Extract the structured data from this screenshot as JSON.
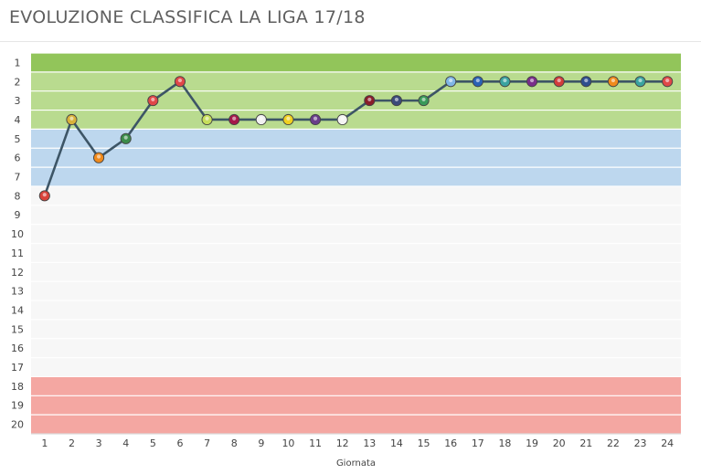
{
  "title": "EVOLUZIONE CLASSIFICA LA LIGA 17/18",
  "chart_data": {
    "type": "line",
    "title": "EVOLUZIONE CLASSIFICA LA LIGA 17/18",
    "xlabel": "Giornata",
    "ylabel": "",
    "x": [
      1,
      2,
      3,
      4,
      5,
      6,
      7,
      8,
      9,
      10,
      11,
      12,
      13,
      14,
      15,
      16,
      17,
      18,
      19,
      20,
      21,
      22,
      23,
      24
    ],
    "y_ticks": [
      1,
      2,
      3,
      4,
      5,
      6,
      7,
      8,
      9,
      10,
      11,
      12,
      13,
      14,
      15,
      16,
      17,
      18,
      19,
      20
    ],
    "ylim": [
      1,
      20
    ],
    "y_inverted": true,
    "grid": true,
    "bands": [
      {
        "from": 1,
        "to": 1,
        "color": "#92c55a"
      },
      {
        "from": 2,
        "to": 4,
        "color": "#b9db8f"
      },
      {
        "from": 5,
        "to": 7,
        "color": "#bdd7ee"
      },
      {
        "from": 8,
        "to": 17,
        "color": "#f7f7f7"
      },
      {
        "from": 18,
        "to": 20,
        "color": "#f4a7a2"
      }
    ],
    "series": [
      {
        "line_color": "#3d5566",
        "values": [
          8,
          4,
          6,
          5,
          3,
          2,
          4,
          4,
          4,
          4,
          4,
          4,
          3,
          3,
          3,
          2,
          2,
          2,
          2,
          2,
          2,
          2,
          2,
          2
        ],
        "opponent_badges": [
          "badge-red",
          "badge-gold",
          "badge-orange",
          "badge-green",
          "badge-redwhite",
          "badge-redwhite",
          "badge-lime",
          "badge-blaugrana",
          "badge-whiteblue",
          "badge-yellow",
          "badge-purple",
          "badge-white",
          "badge-darkred",
          "badge-navy",
          "badge-greenwhite",
          "badge-skyblue",
          "badge-blue",
          "badge-teal",
          "badge-violet",
          "badge-crimson",
          "badge-navygold",
          "badge-orange",
          "badge-teal",
          "badge-redwhite"
        ],
        "badge_colors": [
          "#d9423a",
          "#d9b23a",
          "#f08a1c",
          "#3c8c4a",
          "#e04848",
          "#e04848",
          "#c6de5a",
          "#a5184a",
          "#f1f1f1",
          "#f0d020",
          "#6a3d8a",
          "#f4f4f4",
          "#8a1e2a",
          "#3a4a7a",
          "#3a9a5a",
          "#7fb6e6",
          "#2a62b5",
          "#3aa4a0",
          "#7a2e8a",
          "#d23b3b",
          "#2f4f8f",
          "#f08a1c",
          "#3aa4a0",
          "#e04848"
        ]
      }
    ]
  }
}
